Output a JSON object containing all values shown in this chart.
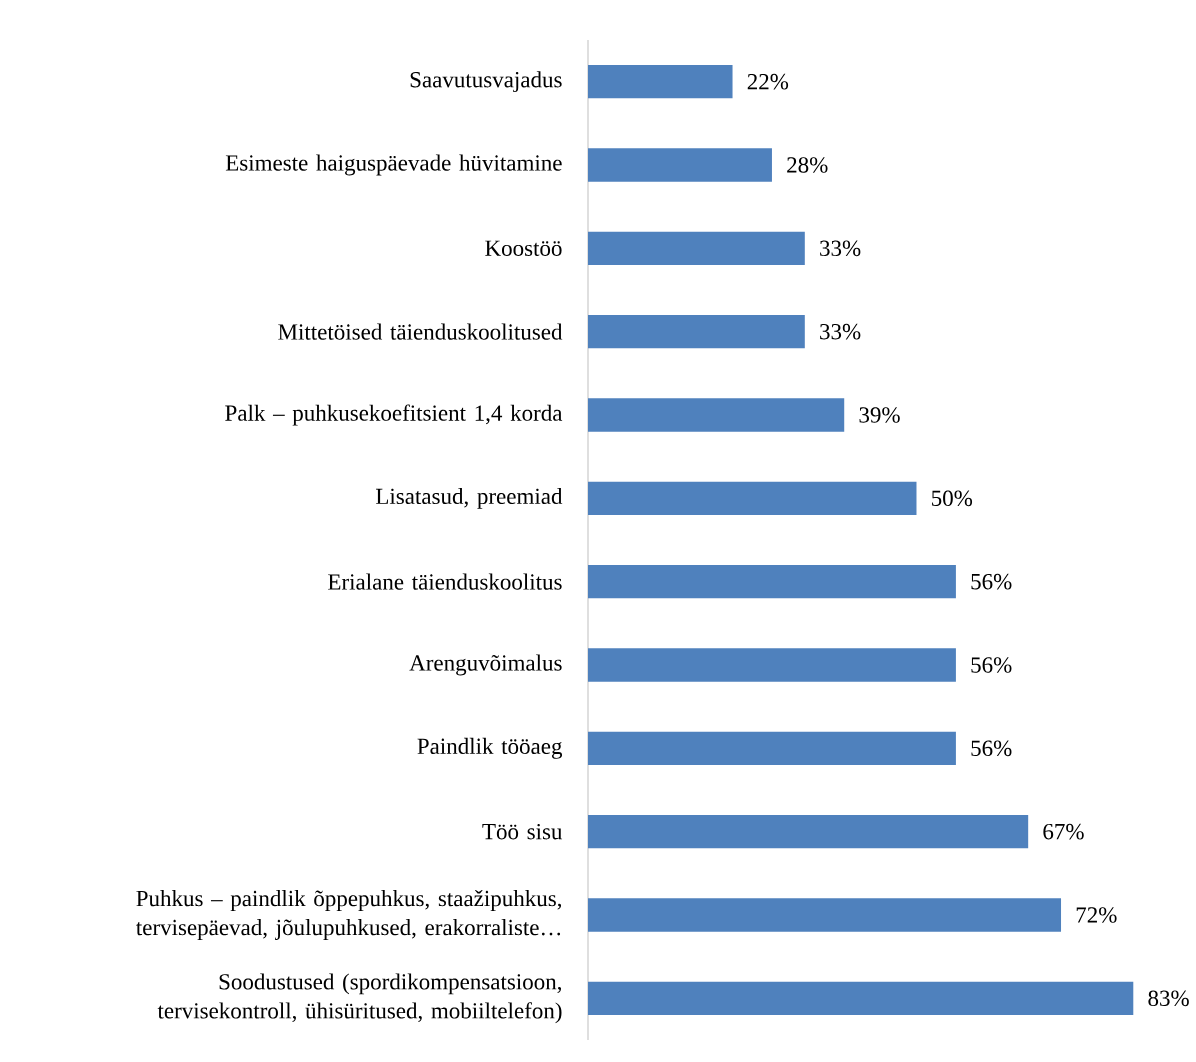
{
  "chart_data": {
    "type": "bar",
    "orientation": "horizontal",
    "color": "#4f81bd",
    "categories": [
      "Saavutusvajadus",
      "Esimeste haiguspäevade hüvitamine",
      "Koostöö",
      "Mittetöised täienduskoolitused",
      "Palk – puhkusekoefitsient 1,4 korda",
      "Lisatasud, preemiad",
      "Erialane täienduskoolitus",
      "Arenguvõimalus",
      "Paindlik tööaeg",
      "Töö sisu",
      "Puhkus – paindlik õppepuhkus, staažipuhkus, tervisepäevad, jõulupuhkused, erakorraliste…",
      "Soodustused (spordikompensatsioon, tervisekontroll, ühisüritused, mobiiltelefon)"
    ],
    "values": [
      22,
      28,
      33,
      33,
      39,
      50,
      56,
      56,
      56,
      67,
      72,
      83
    ],
    "value_labels": [
      "22%",
      "28%",
      "33%",
      "33%",
      "39%",
      "50%",
      "56%",
      "56%",
      "56%",
      "67%",
      "72%",
      "83%"
    ]
  }
}
